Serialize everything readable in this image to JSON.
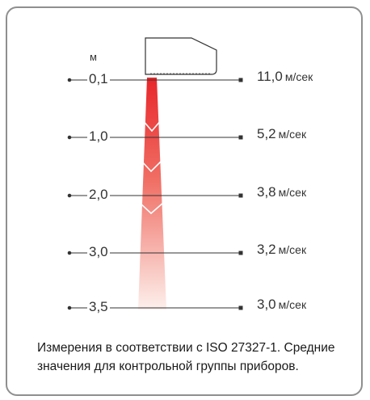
{
  "diagram": {
    "unit_top": "м",
    "speed_unit": "м/сек",
    "rows": [
      {
        "distance": "0,1",
        "speed": "11,0",
        "unit": "м/cек"
      },
      {
        "distance": "1,0",
        "speed": "5,2",
        "unit": "м/сек"
      },
      {
        "distance": "2,0",
        "speed": "3,8",
        "unit": "м/сек"
      },
      {
        "distance": "3,0",
        "speed": "3,2",
        "unit": "м/сек"
      },
      {
        "distance": "3,5",
        "speed": "3,0",
        "unit": "м/сек"
      }
    ],
    "beam_colors": {
      "top": "#e8262a",
      "bottom": "#fdf0ec"
    }
  },
  "note": {
    "text": "Измерения в соответствии с ISO 27327-1. Средние значения для контрольной группы приборов."
  }
}
